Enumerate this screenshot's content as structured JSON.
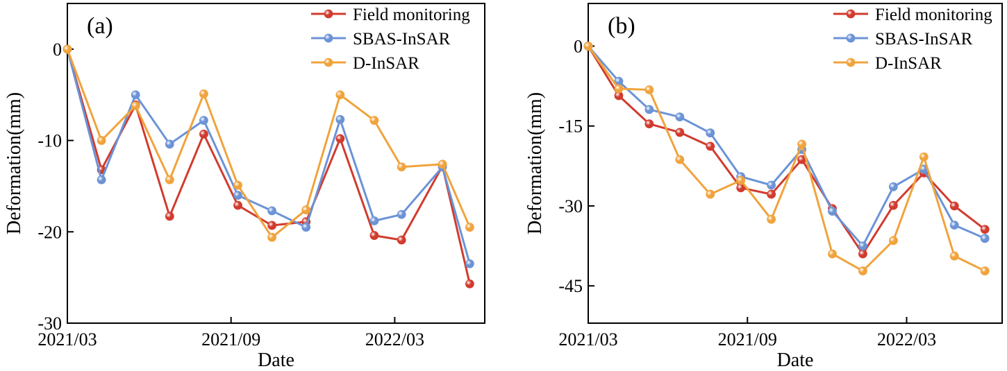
{
  "chart_data": [
    {
      "type": "line",
      "panel_label": "(a)",
      "xlabel": "Date",
      "ylabel": "Deformation(mm)",
      "xlim": [
        0,
        15.3
      ],
      "ylim": [
        -30,
        5
      ],
      "yticks": [
        0,
        -10,
        -20,
        -30
      ],
      "xticks": [
        {
          "x": 0,
          "label": "2021/03"
        },
        {
          "x": 6,
          "label": "2021/09"
        },
        {
          "x": 12,
          "label": "2022/03"
        }
      ],
      "grid": false,
      "legend": "top-right",
      "x": [
        0,
        1.25,
        2.5,
        3.75,
        5,
        6.25,
        7.5,
        8.75,
        10,
        11.25,
        12.25,
        13.75,
        14.75
      ],
      "series": [
        {
          "name": "Field monitoring",
          "color": "#d13b2e",
          "values": [
            0,
            -13.2,
            -6.1,
            -18.3,
            -9.3,
            -17.1,
            -19.3,
            -18.9,
            -9.8,
            -20.4,
            -20.9,
            -12.8,
            -25.7
          ]
        },
        {
          "name": "SBAS-InSAR",
          "color": "#6b93d6",
          "values": [
            0,
            -14.3,
            -5.0,
            -10.4,
            -7.8,
            -16.0,
            -17.7,
            -19.5,
            -7.7,
            -18.8,
            -18.1,
            -12.9,
            -23.5
          ]
        },
        {
          "name": "D-InSAR",
          "color": "#f0a33c",
          "values": [
            0,
            -10.0,
            -6.2,
            -14.3,
            -4.9,
            -14.9,
            -20.6,
            -17.6,
            -5.0,
            -7.8,
            -12.9,
            -12.6,
            -19.5
          ]
        }
      ]
    },
    {
      "type": "line",
      "panel_label": "(b)",
      "xlabel": "Date",
      "ylabel": "Deformation(mm)",
      "xlim": [
        0,
        15.6
      ],
      "ylim": [
        -52,
        8
      ],
      "yticks": [
        0,
        -15,
        -30,
        -45
      ],
      "xticks": [
        {
          "x": 0,
          "label": "2021/03"
        },
        {
          "x": 6,
          "label": "2021/09"
        },
        {
          "x": 12,
          "label": "2022/03"
        }
      ],
      "grid": false,
      "legend": "top-right",
      "x": [
        0,
        1.15,
        2.3,
        3.45,
        4.6,
        5.75,
        6.9,
        8.05,
        9.2,
        10.35,
        11.5,
        12.65,
        13.8,
        14.95
      ],
      "series": [
        {
          "name": "Field monitoring",
          "color": "#d13b2e",
          "values": [
            0,
            -9.3,
            -14.6,
            -16.2,
            -18.8,
            -26.6,
            -27.8,
            -21.3,
            -30.5,
            -39.0,
            -29.9,
            -23.8,
            -30.0,
            -34.4
          ]
        },
        {
          "name": "SBAS-InSAR",
          "color": "#6b93d6",
          "values": [
            0,
            -6.6,
            -11.9,
            -13.3,
            -16.3,
            -24.5,
            -26.1,
            -19.4,
            -31.0,
            -37.5,
            -26.4,
            -23.1,
            -33.6,
            -36.1
          ]
        },
        {
          "name": "D-InSAR",
          "color": "#f0a33c",
          "values": [
            0,
            -8.0,
            -8.2,
            -21.3,
            -27.8,
            -25.2,
            -32.5,
            -18.4,
            -39.0,
            -42.2,
            -36.5,
            -20.8,
            -39.4,
            -42.2
          ]
        }
      ]
    }
  ]
}
